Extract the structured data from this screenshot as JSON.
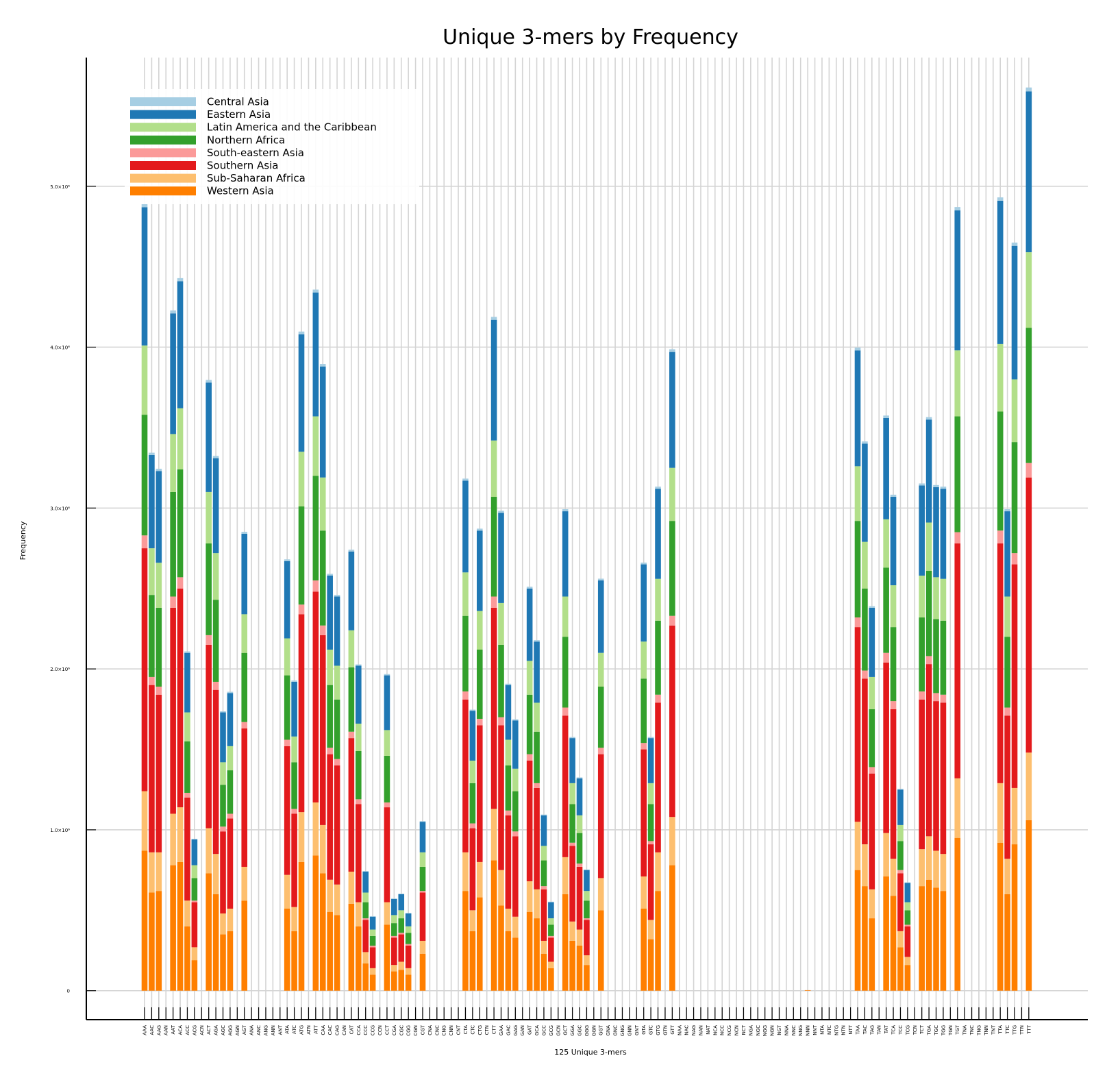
{
  "chart_data": {
    "type": "bar",
    "stacked": true,
    "title": "Unique 3-mers by Frequency",
    "xlabel": "125 Unique 3-mers",
    "ylabel": "Frequency",
    "ylim": [
      -180000,
      5800000
    ],
    "yticks": [
      0,
      1000000,
      2000000,
      3000000,
      4000000,
      5000000
    ],
    "ytick_labels": [
      "0",
      "1.0×10⁶",
      "2.0×10⁶",
      "3.0×10⁶",
      "4.0×10⁶",
      "5.0×10⁶"
    ],
    "grid": true,
    "legend_position": "top-left",
    "categories": [
      "AAA",
      "AAC",
      "AAG",
      "AAN",
      "AAT",
      "ACA",
      "ACC",
      "ACG",
      "ACN",
      "ACT",
      "AGA",
      "AGC",
      "AGG",
      "AGN",
      "AGT",
      "ANA",
      "ANC",
      "ANG",
      "ANN",
      "ANT",
      "ATA",
      "ATC",
      "ATG",
      "ATN",
      "ATT",
      "CAA",
      "CAC",
      "CAG",
      "CAN",
      "CAT",
      "CCA",
      "CCC",
      "CCG",
      "CCN",
      "CCT",
      "CGA",
      "CGC",
      "CGG",
      "CGN",
      "CGT",
      "CNA",
      "CNC",
      "CNG",
      "CNN",
      "CNT",
      "CTA",
      "CTC",
      "CTG",
      "CTN",
      "CTT",
      "GAA",
      "GAC",
      "GAG",
      "GAN",
      "GAT",
      "GCA",
      "GCC",
      "GCG",
      "GCN",
      "GCT",
      "GGA",
      "GGC",
      "GGG",
      "GGN",
      "GGT",
      "GNA",
      "GNC",
      "GNG",
      "GNN",
      "GNT",
      "GTA",
      "GTC",
      "GTG",
      "GTN",
      "GTT",
      "NAA",
      "NAC",
      "NAG",
      "NAN",
      "NAT",
      "NCA",
      "NCC",
      "NCG",
      "NCN",
      "NCT",
      "NGA",
      "NGC",
      "NGG",
      "NGN",
      "NGT",
      "NNA",
      "NNC",
      "NNG",
      "NNN",
      "NNT",
      "NTA",
      "NTC",
      "NTG",
      "NTN",
      "NTT",
      "TAA",
      "TAC",
      "TAG",
      "TAN",
      "TAT",
      "TCA",
      "TCC",
      "TCG",
      "TCN",
      "TCT",
      "TGA",
      "TGC",
      "TGG",
      "TGN",
      "TGT",
      "TNA",
      "TNC",
      "TNG",
      "TNN",
      "TNT",
      "TTA",
      "TTC",
      "TTG",
      "TTN",
      "TTT"
    ],
    "series": [
      {
        "name": "Western Asia",
        "color": "#ff7f00",
        "values": [
          870000,
          610000,
          620000,
          0,
          780000,
          800000,
          400000,
          190000,
          0,
          730000,
          600000,
          350000,
          370000,
          0,
          560000,
          0,
          0,
          0,
          0,
          0,
          510000,
          370000,
          800000,
          0,
          840000,
          730000,
          490000,
          470000,
          0,
          540000,
          400000,
          170000,
          100000,
          0,
          410000,
          120000,
          130000,
          100000,
          0,
          230000,
          0,
          0,
          0,
          0,
          0,
          620000,
          370000,
          580000,
          0,
          810000,
          530000,
          370000,
          330000,
          0,
          490000,
          450000,
          230000,
          140000,
          0,
          600000,
          310000,
          280000,
          160000,
          0,
          500000,
          0,
          0,
          0,
          0,
          0,
          510000,
          320000,
          620000,
          0,
          780000,
          0,
          0,
          0,
          0,
          0,
          0,
          0,
          0,
          0,
          0,
          0,
          0,
          0,
          0,
          0,
          0,
          0,
          0,
          1000,
          0,
          0,
          0,
          0,
          0,
          0,
          750000,
          650000,
          450000,
          0,
          710000,
          590000,
          270000,
          160000,
          0,
          650000,
          690000,
          640000,
          620000,
          0,
          950000,
          0,
          0,
          0,
          0,
          0,
          920000,
          600000,
          910000,
          0,
          1060000
        ]
      },
      {
        "name": "Sub-Saharan Africa",
        "color": "#fdbf6f",
        "values": [
          370000,
          250000,
          240000,
          0,
          320000,
          340000,
          160000,
          80000,
          0,
          280000,
          250000,
          130000,
          140000,
          0,
          210000,
          0,
          0,
          0,
          0,
          0,
          210000,
          150000,
          310000,
          0,
          330000,
          300000,
          200000,
          190000,
          0,
          200000,
          150000,
          70000,
          40000,
          0,
          140000,
          40000,
          50000,
          40000,
          0,
          80000,
          0,
          0,
          0,
          0,
          0,
          240000,
          130000,
          220000,
          0,
          320000,
          220000,
          140000,
          130000,
          0,
          190000,
          180000,
          80000,
          40000,
          0,
          230000,
          120000,
          100000,
          60000,
          0,
          200000,
          0,
          0,
          0,
          0,
          0,
          200000,
          120000,
          240000,
          0,
          300000,
          0,
          0,
          0,
          0,
          0,
          0,
          0,
          0,
          0,
          0,
          0,
          0,
          0,
          0,
          0,
          0,
          0,
          0,
          0,
          0,
          0,
          0,
          0,
          0,
          0,
          300000,
          260000,
          180000,
          0,
          270000,
          230000,
          100000,
          50000,
          0,
          230000,
          270000,
          230000,
          230000,
          0,
          370000,
          0,
          0,
          0,
          0,
          0,
          370000,
          220000,
          350000,
          0,
          420000
        ]
      },
      {
        "name": "Southern Asia",
        "color": "#e31a1c",
        "values": [
          1510000,
          1040000,
          980000,
          0,
          1280000,
          1360000,
          640000,
          280000,
          0,
          1140000,
          1020000,
          510000,
          560000,
          0,
          860000,
          0,
          0,
          0,
          0,
          0,
          800000,
          580000,
          1230000,
          0,
          1310000,
          1180000,
          780000,
          740000,
          0,
          830000,
          610000,
          200000,
          130000,
          0,
          590000,
          170000,
          170000,
          140000,
          0,
          300000,
          0,
          0,
          0,
          0,
          0,
          950000,
          510000,
          850000,
          0,
          1250000,
          900000,
          580000,
          500000,
          0,
          750000,
          630000,
          320000,
          150000,
          0,
          880000,
          470000,
          390000,
          220000,
          0,
          770000,
          0,
          0,
          0,
          0,
          0,
          790000,
          470000,
          930000,
          0,
          1190000,
          0,
          0,
          0,
          0,
          0,
          0,
          0,
          0,
          0,
          0,
          0,
          0,
          0,
          0,
          0,
          0,
          0,
          0,
          0,
          0,
          0,
          0,
          0,
          0,
          0,
          1210000,
          1030000,
          720000,
          0,
          1060000,
          930000,
          360000,
          190000,
          0,
          930000,
          1070000,
          930000,
          940000,
          0,
          1460000,
          0,
          0,
          0,
          0,
          0,
          1490000,
          890000,
          1390000,
          0,
          1710000
        ]
      },
      {
        "name": "South-eastern Asia",
        "color": "#fb9a99",
        "values": [
          80000,
          50000,
          50000,
          0,
          70000,
          70000,
          30000,
          10000,
          0,
          60000,
          50000,
          30000,
          30000,
          0,
          40000,
          0,
          0,
          0,
          0,
          0,
          40000,
          30000,
          60000,
          0,
          70000,
          60000,
          40000,
          40000,
          0,
          40000,
          30000,
          10000,
          10000,
          0,
          30000,
          10000,
          10000,
          10000,
          0,
          10000,
          0,
          0,
          0,
          0,
          0,
          50000,
          30000,
          40000,
          0,
          70000,
          50000,
          30000,
          30000,
          0,
          40000,
          30000,
          20000,
          10000,
          0,
          50000,
          20000,
          20000,
          10000,
          0,
          40000,
          0,
          0,
          0,
          0,
          0,
          40000,
          20000,
          50000,
          0,
          60000,
          0,
          0,
          0,
          0,
          0,
          0,
          0,
          0,
          0,
          0,
          0,
          0,
          0,
          0,
          0,
          0,
          0,
          0,
          0,
          0,
          0,
          0,
          0,
          0,
          0,
          60000,
          50000,
          40000,
          0,
          60000,
          50000,
          20000,
          10000,
          0,
          50000,
          50000,
          50000,
          50000,
          0,
          70000,
          0,
          0,
          0,
          0,
          0,
          80000,
          50000,
          70000,
          0,
          90000
        ]
      },
      {
        "name": "Northern Africa",
        "color": "#33a02c",
        "values": [
          750000,
          510000,
          490000,
          0,
          650000,
          670000,
          320000,
          140000,
          0,
          570000,
          510000,
          260000,
          270000,
          0,
          430000,
          0,
          0,
          0,
          0,
          0,
          400000,
          290000,
          610000,
          0,
          650000,
          590000,
          390000,
          370000,
          0,
          400000,
          300000,
          100000,
          60000,
          0,
          290000,
          80000,
          90000,
          70000,
          0,
          150000,
          0,
          0,
          0,
          0,
          0,
          470000,
          250000,
          430000,
          0,
          620000,
          450000,
          280000,
          250000,
          0,
          370000,
          320000,
          160000,
          70000,
          0,
          440000,
          240000,
          190000,
          110000,
          0,
          380000,
          0,
          0,
          0,
          0,
          0,
          400000,
          230000,
          460000,
          0,
          590000,
          0,
          0,
          0,
          0,
          0,
          0,
          0,
          0,
          0,
          0,
          0,
          0,
          0,
          0,
          0,
          0,
          0,
          0,
          0,
          0,
          0,
          0,
          0,
          0,
          0,
          600000,
          510000,
          360000,
          0,
          530000,
          460000,
          180000,
          90000,
          0,
          460000,
          530000,
          460000,
          460000,
          0,
          720000,
          0,
          0,
          0,
          0,
          0,
          740000,
          440000,
          690000,
          0,
          840000
        ]
      },
      {
        "name": "Latin America and the Caribbean",
        "color": "#b2df8a",
        "values": [
          430000,
          290000,
          280000,
          0,
          360000,
          380000,
          180000,
          80000,
          0,
          320000,
          290000,
          140000,
          150000,
          0,
          240000,
          0,
          0,
          0,
          0,
          0,
          230000,
          160000,
          340000,
          0,
          370000,
          330000,
          220000,
          210000,
          0,
          230000,
          170000,
          60000,
          40000,
          0,
          160000,
          50000,
          50000,
          40000,
          0,
          90000,
          0,
          0,
          0,
          0,
          0,
          270000,
          140000,
          240000,
          0,
          350000,
          260000,
          160000,
          140000,
          0,
          210000,
          180000,
          90000,
          40000,
          0,
          250000,
          130000,
          110000,
          60000,
          0,
          210000,
          0,
          0,
          0,
          0,
          0,
          230000,
          130000,
          260000,
          0,
          330000,
          0,
          0,
          0,
          0,
          0,
          0,
          0,
          0,
          0,
          0,
          0,
          0,
          0,
          0,
          0,
          0,
          0,
          0,
          0,
          0,
          0,
          0,
          0,
          0,
          0,
          340000,
          290000,
          200000,
          0,
          300000,
          260000,
          100000,
          50000,
          0,
          260000,
          300000,
          260000,
          260000,
          0,
          410000,
          0,
          0,
          0,
          0,
          0,
          420000,
          250000,
          390000,
          0,
          470000
        ]
      },
      {
        "name": "Eastern Asia",
        "color": "#1f78b4",
        "values": [
          860000,
          580000,
          570000,
          0,
          750000,
          790000,
          370000,
          160000,
          0,
          680000,
          590000,
          310000,
          330000,
          0,
          500000,
          0,
          0,
          0,
          0,
          0,
          480000,
          340000,
          730000,
          0,
          770000,
          690000,
          460000,
          430000,
          0,
          490000,
          360000,
          130000,
          80000,
          0,
          340000,
          100000,
          100000,
          80000,
          0,
          190000,
          0,
          0,
          0,
          0,
          0,
          570000,
          310000,
          500000,
          0,
          750000,
          560000,
          340000,
          300000,
          0,
          450000,
          380000,
          190000,
          100000,
          0,
          530000,
          280000,
          230000,
          130000,
          0,
          450000,
          0,
          0,
          0,
          0,
          0,
          480000,
          280000,
          560000,
          0,
          720000,
          0,
          0,
          0,
          0,
          0,
          0,
          0,
          0,
          0,
          0,
          0,
          0,
          0,
          0,
          0,
          0,
          0,
          0,
          0,
          0,
          0,
          0,
          0,
          0,
          0,
          720000,
          610000,
          430000,
          0,
          630000,
          550000,
          220000,
          120000,
          0,
          560000,
          640000,
          560000,
          560000,
          0,
          870000,
          0,
          0,
          0,
          0,
          0,
          890000,
          530000,
          830000,
          0,
          1000000
        ]
      },
      {
        "name": "Central Asia",
        "color": "#a6cee3",
        "values": [
          20000,
          14000,
          14000,
          0,
          18000,
          19000,
          9000,
          4000,
          0,
          16000,
          14000,
          7000,
          8000,
          0,
          12000,
          0,
          0,
          0,
          0,
          0,
          11000,
          8000,
          17000,
          0,
          18000,
          16000,
          11000,
          10000,
          0,
          11000,
          8000,
          3000,
          2000,
          0,
          8000,
          2000,
          2000,
          2000,
          0,
          4000,
          0,
          0,
          0,
          0,
          0,
          13000,
          7000,
          12000,
          0,
          18000,
          13000,
          8000,
          7000,
          0,
          11000,
          9000,
          5000,
          2000,
          0,
          13000,
          7000,
          6000,
          3000,
          0,
          11000,
          0,
          0,
          0,
          0,
          0,
          11000,
          7000,
          13000,
          0,
          17000,
          0,
          0,
          0,
          0,
          0,
          0,
          0,
          0,
          0,
          0,
          0,
          0,
          0,
          0,
          0,
          0,
          0,
          0,
          0,
          0,
          0,
          0,
          0,
          0,
          0,
          17000,
          14000,
          10000,
          0,
          15000,
          13000,
          5000,
          3000,
          0,
          13000,
          15000,
          13000,
          13000,
          0,
          21000,
          0,
          0,
          0,
          0,
          0,
          21000,
          13000,
          20000,
          0,
          24000
        ]
      }
    ]
  }
}
